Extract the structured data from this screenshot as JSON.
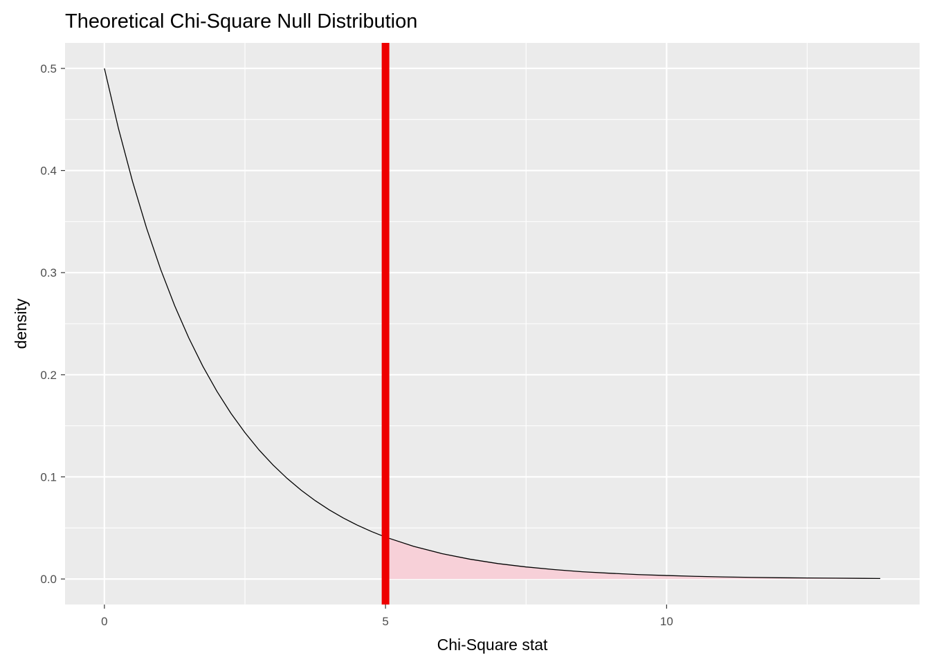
{
  "chart_data": {
    "type": "area",
    "title": "Theoretical Chi-Square Null Distribution",
    "xlabel": "Chi-Square stat",
    "ylabel": "density",
    "xlim": [
      -0.7,
      14.5
    ],
    "ylim": [
      -0.025,
      0.525
    ],
    "x_ticks": [
      {
        "value": 0,
        "label": "0"
      },
      {
        "value": 5,
        "label": "5"
      },
      {
        "value": 10,
        "label": "10"
      }
    ],
    "y_ticks": [
      {
        "value": 0.0,
        "label": "0.0"
      },
      {
        "value": 0.1,
        "label": "0.1"
      },
      {
        "value": 0.2,
        "label": "0.2"
      },
      {
        "value": 0.3,
        "label": "0.3"
      },
      {
        "value": 0.4,
        "label": "0.4"
      },
      {
        "value": 0.5,
        "label": "0.5"
      }
    ],
    "x_minor_gridlines": [
      2.5,
      7.5,
      12.5
    ],
    "y_minor_gridlines": [
      0.05,
      0.15,
      0.25,
      0.35,
      0.45
    ],
    "grid": true,
    "curve": {
      "x": [
        0,
        0.25,
        0.5,
        0.75,
        1,
        1.25,
        1.5,
        1.75,
        2,
        2.25,
        2.5,
        2.75,
        3,
        3.25,
        3.5,
        3.75,
        4,
        4.25,
        4.5,
        4.75,
        5,
        5.5,
        6,
        6.5,
        7,
        7.5,
        8,
        8.5,
        9,
        9.5,
        10,
        10.5,
        11,
        11.5,
        12,
        12.5,
        13,
        13.5,
        13.8
      ],
      "y": [
        0.5,
        0.4412,
        0.3894,
        0.3436,
        0.3033,
        0.2676,
        0.2362,
        0.2084,
        0.1839,
        0.1623,
        0.1433,
        0.1264,
        0.1116,
        0.0985,
        0.0869,
        0.0767,
        0.0677,
        0.0597,
        0.0527,
        0.0465,
        0.041,
        0.032,
        0.0249,
        0.0194,
        0.0151,
        0.0118,
        0.0092,
        0.0071,
        0.0056,
        0.0043,
        0.0034,
        0.0026,
        0.002,
        0.0016,
        0.0012,
        0.001,
        0.0008,
        0.0006,
        0.0005
      ],
      "color": "#000000"
    },
    "shaded_region": {
      "from": 5,
      "to": 13.8,
      "color": "#f7d0d8"
    },
    "vline": {
      "x": 5,
      "color": "#ee0000"
    },
    "panel_background": "#ebebeb",
    "grid_color": "#ffffff"
  }
}
